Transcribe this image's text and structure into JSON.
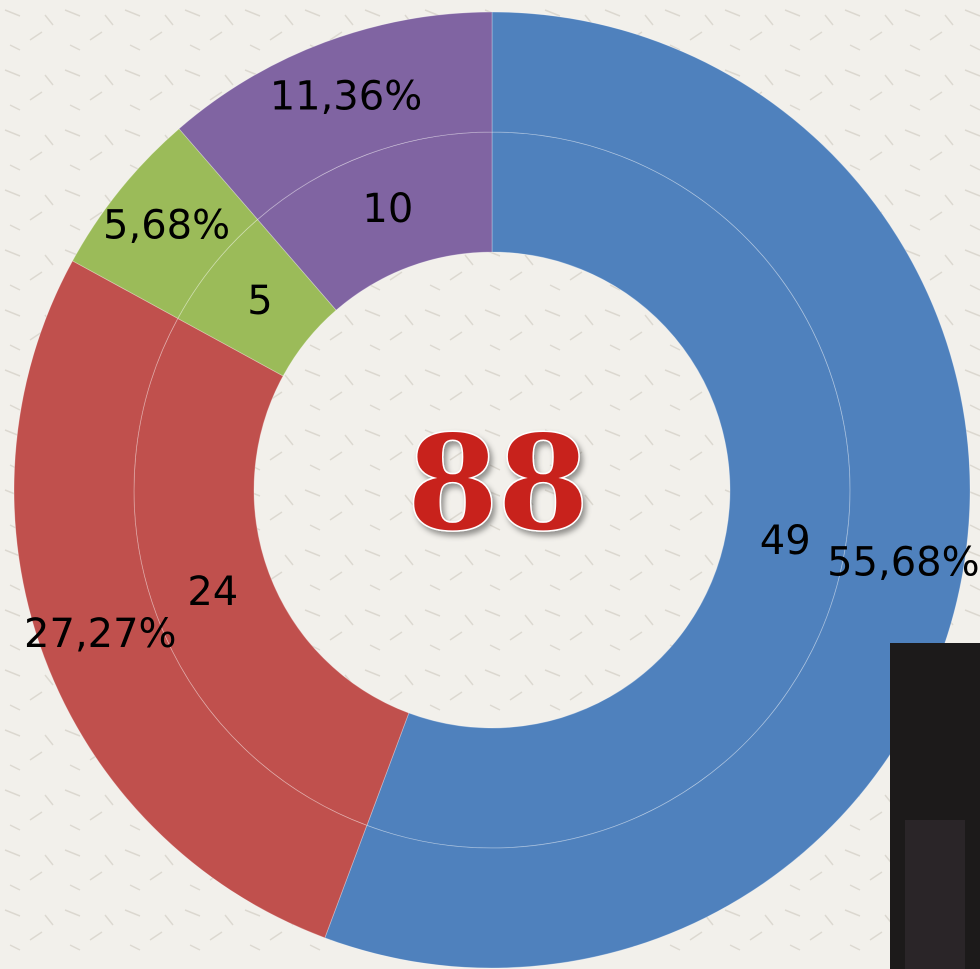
{
  "chart_data": {
    "type": "donut",
    "total": 88,
    "colors": [
      "#4f81bd",
      "#c0504d",
      "#9bbb59",
      "#8064a2"
    ],
    "series": [
      {
        "values": [
          49,
          24,
          5,
          10
        ]
      },
      {
        "values": [
          55.68,
          27.27,
          5.68,
          11.36
        ],
        "value_labels": [
          "55,68%",
          "27,27%",
          "5,68%",
          "11,36%"
        ]
      }
    ]
  }
}
